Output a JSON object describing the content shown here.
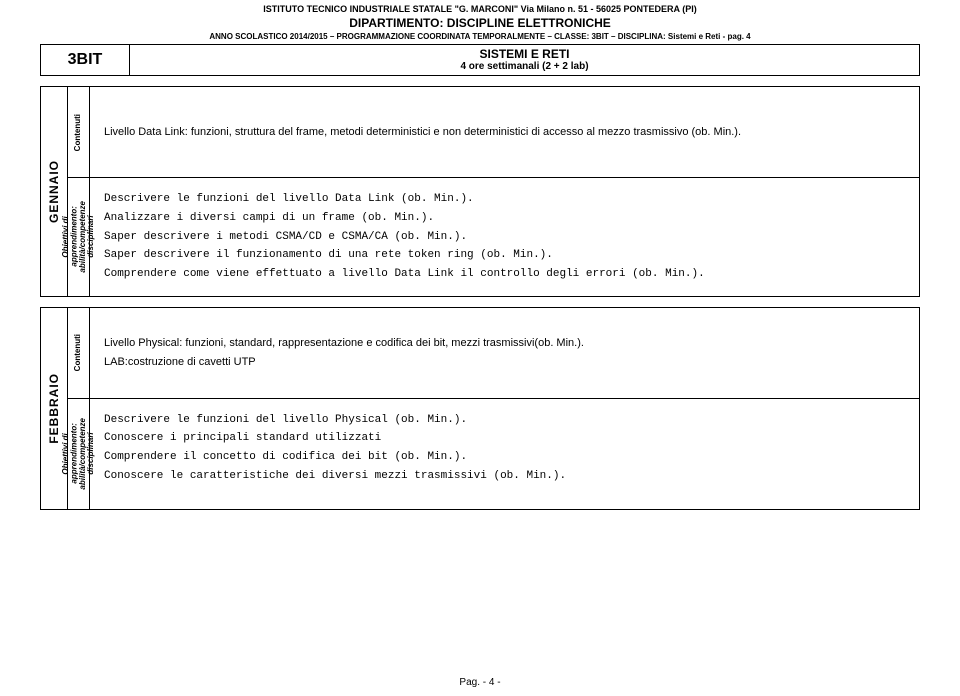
{
  "header": {
    "line1": "ISTITUTO TECNICO INDUSTRIALE STATALE \"G. MARCONI\" Via Milano n. 51 - 56025 PONTEDERA (PI)",
    "line2": "DIPARTIMENTO: DISCIPLINE ELETTRONICHE",
    "line3": "ANNO SCOLASTICO 2014/2015 – PROGRAMMAZIONE COORDINATA TEMPORALMENTE – CLASSE: 3BIT – DISCIPLINA: Sistemi e Reti - pag. 4"
  },
  "title": {
    "class_code": "3BIT",
    "subject": "SISTEMI E RETI",
    "hours": "4 ore settimanali (2 + 2 lab)"
  },
  "labels": {
    "contenuti": "Contenuti",
    "obiettivi": "Obiettivi di\napprendimento:\nabilità/competenze\ndisciplinari"
  },
  "months": [
    {
      "name": "GENNAIO",
      "contenuti": "Livello Data Link: funzioni, struttura del frame, metodi deterministici e non deterministici di accesso al mezzo trasmissivo (ob. Min.).",
      "obiettivi": [
        "Descrivere le funzioni del livello Data Link (ob. Min.).",
        "Analizzare i diversi campi di un frame (ob. Min.).",
        "Saper descrivere i metodi CSMA/CD e CSMA/CA (ob. Min.).",
        "Saper descrivere il funzionamento di una rete token ring (ob. Min.).",
        "Comprendere come viene effettuato a livello Data Link il controllo degli errori (ob. Min.)."
      ]
    },
    {
      "name": "FEBBRAIO",
      "contenuti": "Livello Physical: funzioni, standard, rappresentazione e codifica dei bit, mezzi trasmissivi(ob. Min.).\nLAB:costruzione di cavetti UTP",
      "obiettivi": [
        "Descrivere le funzioni del livello Physical (ob. Min.).",
        "Conoscere i principali standard utilizzati",
        "Comprendere il concetto di codifica dei bit (ob. Min.).",
        "Conoscere le caratteristiche dei diversi mezzi trasmissivi (ob. Min.)."
      ]
    }
  ],
  "footer": "Pag. - 4 -"
}
